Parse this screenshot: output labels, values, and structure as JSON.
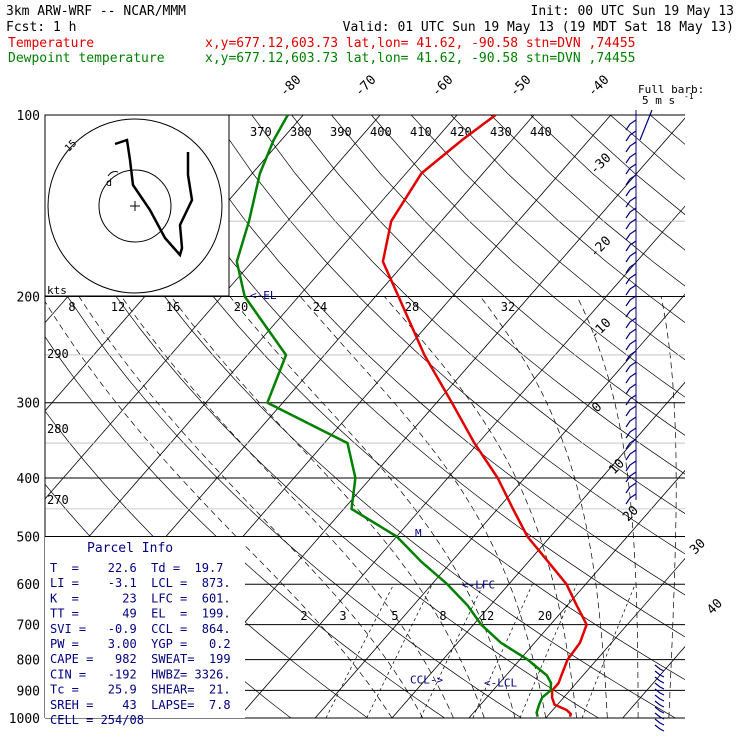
{
  "header": {
    "model": "3km ARW-WRF -- NCAR/MMM",
    "init": "Init: 00 UTC Sun 19 May 13",
    "fcst": "Fcst:     1 h",
    "valid": "Valid: 01 UTC Sun 19 May 13 (19 MDT Sat 18 May 13)",
    "temp_label": "Temperature",
    "dew_label": "Dewpoint temperature",
    "temp_info": "x,y=677.12,603.73   lat,lon= 41.62, -90.58  stn=DVN ,74455",
    "dew_info": "x,y=677.12,603.73   lat,lon= 41.62, -90.58  stn=DVN ,74455"
  },
  "colors": {
    "temperature": "#e00000",
    "dewpoint": "#008000",
    "annotation": "#000080",
    "axes": "#000000"
  },
  "chart_data": {
    "type": "line",
    "title": "",
    "xlabel": "",
    "ylabel": "",
    "y_scale": "log-pressure",
    "ylim": [
      1000,
      100
    ],
    "pressure_ticks": [
      "100",
      "200",
      "300",
      "400",
      "500",
      "600",
      "700",
      "800",
      "900",
      "1000"
    ],
    "temperature_ticks": [
      "-80",
      "-70",
      "-60",
      "-50",
      "-40",
      "-30",
      "-20",
      "-10",
      "0",
      "10",
      "20",
      "30",
      "40"
    ],
    "theta_ticks": [
      "370",
      "380",
      "390",
      "400",
      "410",
      "420",
      "430",
      "440"
    ],
    "hodograph_speed_ticks": [
      "8",
      "12",
      "16",
      "20",
      "24",
      "28",
      "32"
    ],
    "height_ticks_left": [
      "290",
      "280",
      "270"
    ],
    "mixing_ratio_ticks": [
      "2",
      "3",
      "5",
      "8",
      "12",
      "20"
    ],
    "series": [
      {
        "name": "Temperature",
        "color": "#e00000",
        "points": [
          [
            995,
            23
          ],
          [
            985,
            22.8
          ],
          [
            970,
            21.8
          ],
          [
            950,
            19.6
          ],
          [
            925,
            18.5
          ],
          [
            900,
            17.7
          ],
          [
            875,
            17.7
          ],
          [
            850,
            17.2
          ],
          [
            800,
            16.2
          ],
          [
            750,
            15.9
          ],
          [
            700,
            14.7
          ],
          [
            650,
            11.2
          ],
          [
            600,
            7.5
          ],
          [
            550,
            2.5
          ],
          [
            500,
            -3
          ],
          [
            450,
            -8
          ],
          [
            400,
            -13.5
          ],
          [
            350,
            -20.5
          ],
          [
            300,
            -28
          ],
          [
            250,
            -37
          ],
          [
            200,
            -47
          ],
          [
            175,
            -53
          ],
          [
            150,
            -56.5
          ],
          [
            125,
            -58
          ],
          [
            110,
            -56.5
          ],
          [
            100,
            -55
          ]
        ]
      },
      {
        "name": "Dewpoint temperature",
        "color": "#008000",
        "points": [
          [
            995,
            18.8
          ],
          [
            980,
            18.2
          ],
          [
            950,
            17.6
          ],
          [
            925,
            17.2
          ],
          [
            900,
            17.5
          ],
          [
            875,
            16.7
          ],
          [
            850,
            15.3
          ],
          [
            800,
            11
          ],
          [
            750,
            5.6
          ],
          [
            700,
            1
          ],
          [
            650,
            -3
          ],
          [
            600,
            -8
          ],
          [
            550,
            -14
          ],
          [
            500,
            -20
          ],
          [
            450,
            -29
          ],
          [
            400,
            -32
          ],
          [
            350,
            -37
          ],
          [
            300,
            -52
          ],
          [
            250,
            -55
          ],
          [
            200,
            -67
          ],
          [
            175,
            -72
          ],
          [
            150,
            -75
          ],
          [
            125,
            -79
          ],
          [
            110,
            -81
          ],
          [
            100,
            -82
          ]
        ]
      }
    ],
    "annotations": [
      {
        "text": "<-EL",
        "p": 199
      },
      {
        "text": "<-LFC",
        "p": 601
      },
      {
        "text": "<-LCL",
        "p": 873
      },
      {
        "text": "CCL->",
        "p": 864
      },
      {
        "text": "M",
        "p": 493
      }
    ]
  },
  "barb_legend": {
    "line1": "Full barb:",
    "line2": "5 m s",
    "unit_sup": "-1"
  },
  "hodograph": {
    "unit": "kts",
    "ring_label": "15"
  },
  "parcel": {
    "title": "Parcel Info",
    "rows": [
      "T  =    22.6  Td =  19.7",
      "LI =    -3.1  LCL =  873.",
      "K  =      23  LFC =  601.",
      "TT =      49  EL  =  199.",
      "SVI =   -0.9  CCL =  864.",
      "PW =    3.00  YGP =   0.2",
      "CAPE =   982  SWEAT=  199",
      "CIN =   -192  HWBZ= 3326.",
      "Tc =    25.9  SHEAR=  21.",
      "SREH =    43  LAPSE=  7.8",
      "CELL = 254/08"
    ]
  }
}
